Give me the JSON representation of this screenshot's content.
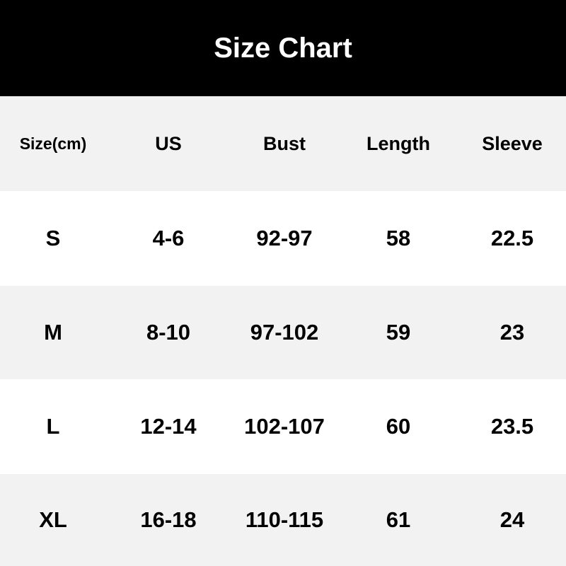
{
  "title": "Size Chart",
  "table": {
    "headers": [
      "Size(cm)",
      "US",
      "Bust",
      "Length",
      "Sleeve"
    ],
    "rows": [
      [
        "S",
        "4-6",
        "92-97",
        "58",
        "22.5"
      ],
      [
        "M",
        "8-10",
        "97-102",
        "59",
        "23"
      ],
      [
        "L",
        "12-14",
        "102-107",
        "60",
        "23.5"
      ],
      [
        "XL",
        "16-18",
        "110-115",
        "61",
        "24"
      ]
    ]
  },
  "colors": {
    "header_bg": "#000000",
    "stripe": "#f2f2f2",
    "text": "#000000"
  }
}
